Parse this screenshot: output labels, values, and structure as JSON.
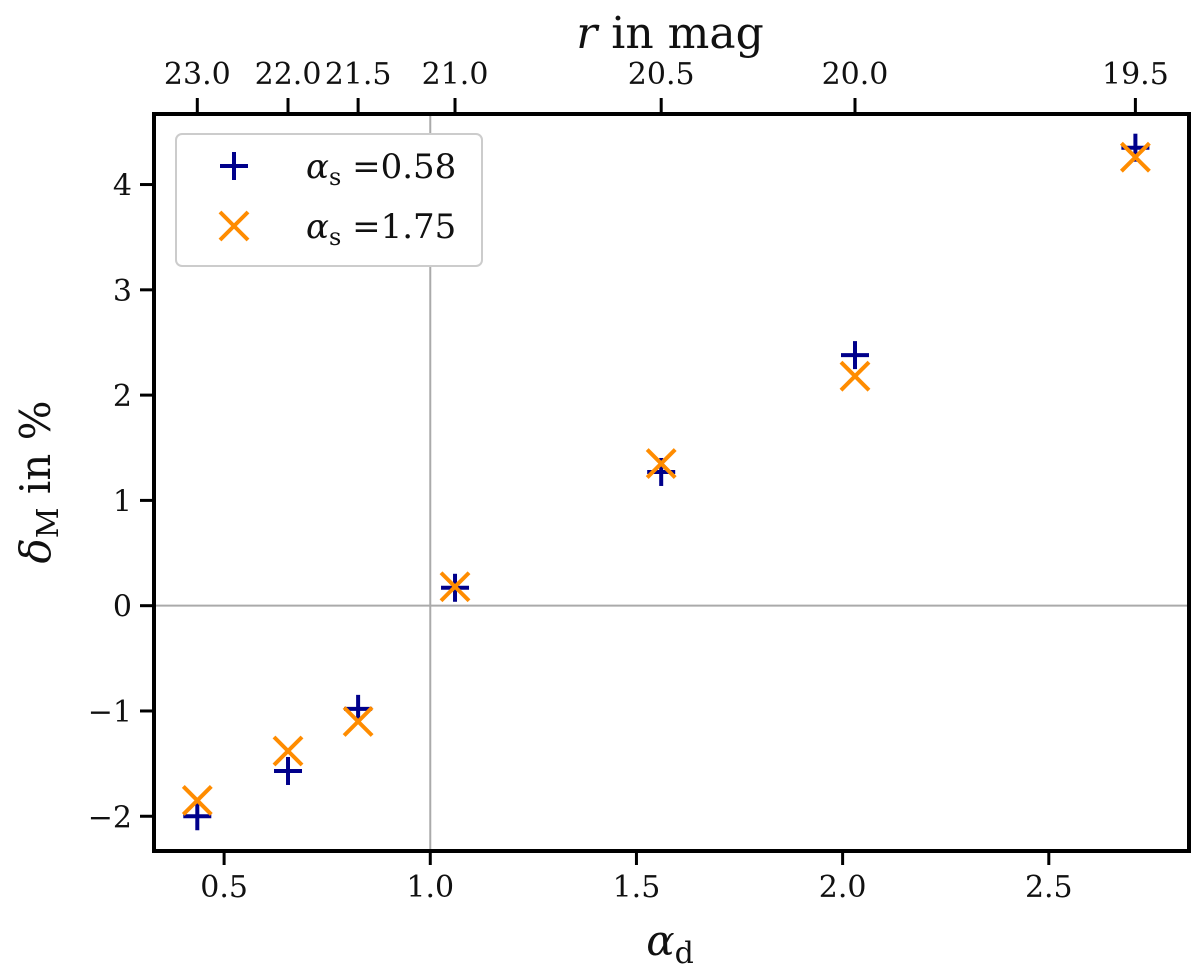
{
  "chart_data": {
    "type": "scatter",
    "title": "",
    "xlabel": {
      "symbol": "α",
      "subscript": "d"
    },
    "ylabel": {
      "symbol": "δ",
      "subscript": "M",
      "suffix": " in %"
    },
    "top_xlabel": {
      "symbol": "r",
      "suffix": " in mag"
    },
    "xlim": [
      0.33,
      2.84
    ],
    "ylim": [
      -2.33,
      4.67
    ],
    "x_ticks": [
      0.5,
      1.0,
      1.5,
      2.0,
      2.5
    ],
    "x_tick_labels": [
      "0.5",
      "1.0",
      "1.5",
      "2.0",
      "2.5"
    ],
    "y_ticks": [
      -2,
      -1,
      0,
      1,
      2,
      3,
      4
    ],
    "y_tick_labels": [
      "−2",
      "−1",
      "0",
      "1",
      "2",
      "3",
      "4"
    ],
    "top_ticks": [
      {
        "x": 0.435,
        "label": "23.0"
      },
      {
        "x": 0.655,
        "label": "22.0"
      },
      {
        "x": 0.825,
        "label": "21.5"
      },
      {
        "x": 1.06,
        "label": "21.0"
      },
      {
        "x": 1.56,
        "label": "20.5"
      },
      {
        "x": 2.03,
        "label": "20.0"
      },
      {
        "x": 2.71,
        "label": "19.5"
      }
    ],
    "reference_lines": {
      "x": 1.0,
      "y": 0
    },
    "grid": false,
    "legend_position": "top-left",
    "series": [
      {
        "name": "α_s =0.58",
        "legend_symbol": "α",
        "legend_subscript": "s",
        "legend_value": " =0.58",
        "marker": "plus",
        "color": "#00008b",
        "x": [
          0.435,
          0.655,
          0.825,
          1.06,
          1.56,
          2.03,
          2.71
        ],
        "y": [
          -2.0,
          -1.57,
          -0.98,
          0.17,
          1.27,
          2.38,
          4.35
        ]
      },
      {
        "name": "α_s =1.75",
        "legend_symbol": "α",
        "legend_subscript": "s",
        "legend_value": " =1.75",
        "marker": "x",
        "color": "#ff8c00",
        "x": [
          0.435,
          0.655,
          0.825,
          1.06,
          1.56,
          2.03,
          2.71
        ],
        "y": [
          -1.85,
          -1.38,
          -1.1,
          0.18,
          1.35,
          2.18,
          4.26
        ]
      }
    ]
  }
}
